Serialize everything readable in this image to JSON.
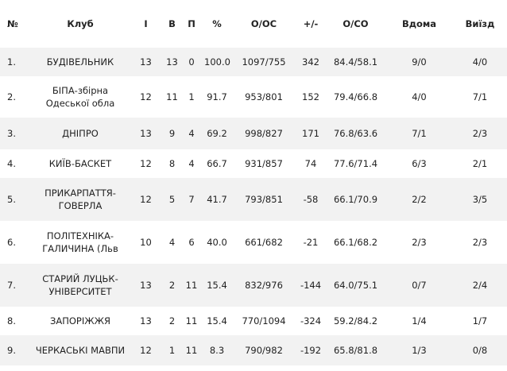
{
  "table": {
    "columns": [
      "№",
      "Клуб",
      "І",
      "В",
      "П",
      "%",
      "О/ОС",
      "+/-",
      "О/СО",
      "Вдома",
      "Виїзд"
    ],
    "rows": [
      [
        "1.",
        "БУДІВЕЛЬНИК",
        "13",
        "13",
        "0",
        "100.0",
        "1097/755",
        "342",
        "84.4/58.1",
        "9/0",
        "4/0"
      ],
      [
        "2.",
        "БІПА-збірна Одеської обла",
        "12",
        "11",
        "1",
        "91.7",
        "953/801",
        "152",
        "79.4/66.8",
        "4/0",
        "7/1"
      ],
      [
        "3.",
        "ДНІПРО",
        "13",
        "9",
        "4",
        "69.2",
        "998/827",
        "171",
        "76.8/63.6",
        "7/1",
        "2/3"
      ],
      [
        "4.",
        "КИЇВ-БАСКЕТ",
        "12",
        "8",
        "4",
        "66.7",
        "931/857",
        "74",
        "77.6/71.4",
        "6/3",
        "2/1"
      ],
      [
        "5.",
        "ПРИКАРПАТТЯ-ГОВЕРЛА",
        "12",
        "5",
        "7",
        "41.7",
        "793/851",
        "-58",
        "66.1/70.9",
        "2/2",
        "3/5"
      ],
      [
        "6.",
        "ПОЛІТЕХНІКА-ГАЛИЧИНА (Льв",
        "10",
        "4",
        "6",
        "40.0",
        "661/682",
        "-21",
        "66.1/68.2",
        "2/3",
        "2/3"
      ],
      [
        "7.",
        "СТАРИЙ ЛУЦЬК-УНІВЕРСИТЕТ",
        "13",
        "2",
        "11",
        "15.4",
        "832/976",
        "-144",
        "64.0/75.1",
        "0/7",
        "2/4"
      ],
      [
        "8.",
        "ЗАПОРІЖЖЯ",
        "13",
        "2",
        "11",
        "15.4",
        "770/1094",
        "-324",
        "59.2/84.2",
        "1/4",
        "1/7"
      ],
      [
        "9.",
        "ЧЕРКАСЬКІ МАВПИ",
        "12",
        "1",
        "11",
        "8.3",
        "790/982",
        "-192",
        "65.8/81.8",
        "1/3",
        "0/8"
      ]
    ]
  }
}
